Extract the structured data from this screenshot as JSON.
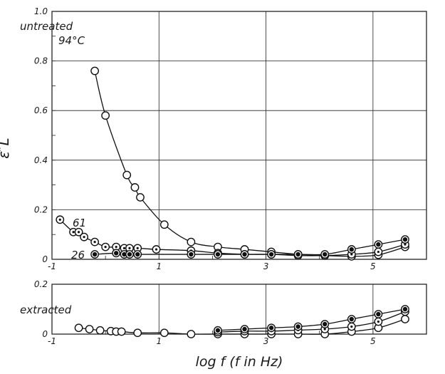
{
  "chart_data": [
    {
      "type": "scatter",
      "panel": "untreated",
      "ylabel": "ε″L",
      "xlim": [
        -1,
        6
      ],
      "ylim": [
        0,
        1.0
      ],
      "grid": true,
      "x_ticks": [
        "-1",
        "1",
        "3",
        "5"
      ],
      "y_ticks": [
        "0",
        "0.2",
        "0.4",
        "0.6",
        "0.8",
        "1.0"
      ],
      "annotations": [
        "untreated",
        "94°C",
        "61",
        "26"
      ],
      "series": [
        {
          "name": "94°C",
          "marker": "open-circle",
          "x": [
            -0.2,
            0.0,
            0.4,
            0.55,
            0.65,
            1.1,
            1.6,
            2.1,
            2.6,
            3.1,
            3.6,
            4.1,
            4.6,
            5.1,
            5.6
          ],
          "y": [
            0.76,
            0.58,
            0.34,
            0.29,
            0.25,
            0.14,
            0.07,
            0.05,
            0.04,
            0.03,
            0.02,
            0.015,
            0.012,
            0.018,
            0.05
          ]
        },
        {
          "name": "61",
          "marker": "dotted-circle",
          "x": [
            -0.85,
            -0.6,
            -0.5,
            -0.4,
            -0.2,
            0.0,
            0.2,
            0.35,
            0.45,
            0.6,
            0.95,
            1.6,
            2.1,
            2.6,
            3.1,
            3.6,
            4.1,
            4.6,
            5.1,
            5.6
          ],
          "y": [
            0.16,
            0.11,
            0.11,
            0.09,
            0.07,
            0.05,
            0.05,
            0.045,
            0.045,
            0.045,
            0.04,
            0.035,
            0.025,
            0.02,
            0.02,
            0.015,
            0.015,
            0.02,
            0.03,
            0.06
          ]
        },
        {
          "name": "26",
          "marker": "filled-dot-circle",
          "x": [
            -0.2,
            0.2,
            0.35,
            0.45,
            0.6,
            1.6,
            2.1,
            2.6,
            3.1,
            3.6,
            4.1,
            4.6,
            5.1,
            5.6
          ],
          "y": [
            0.02,
            0.025,
            0.02,
            0.02,
            0.02,
            0.02,
            0.02,
            0.02,
            0.02,
            0.02,
            0.02,
            0.04,
            0.06,
            0.08
          ]
        }
      ]
    },
    {
      "type": "scatter",
      "panel": "extracted",
      "xlabel": "log f (f in Hz)",
      "xlim": [
        -1,
        6
      ],
      "ylim": [
        0,
        0.2
      ],
      "grid": true,
      "x_ticks": [
        "-1",
        "1",
        "3",
        "5"
      ],
      "y_ticks": [
        "0",
        "0.2"
      ],
      "annotations": [
        "extracted"
      ],
      "series": [
        {
          "marker": "open-circle",
          "x": [
            -0.5,
            -0.3,
            -0.1,
            0.1,
            0.2,
            0.3,
            0.6,
            1.1,
            1.6,
            2.1,
            2.6,
            3.1,
            3.6,
            4.1,
            4.6,
            5.1,
            5.6
          ],
          "y": [
            0.025,
            0.02,
            0.015,
            0.012,
            0.01,
            0.01,
            0.005,
            0.005,
            0.0,
            0.0,
            0.0,
            0.0,
            0.0,
            0.0,
            0.01,
            0.025,
            0.06
          ]
        },
        {
          "marker": "dotted-circle",
          "x": [
            2.1,
            2.6,
            3.1,
            3.6,
            4.1,
            4.6,
            5.1,
            5.6
          ],
          "y": [
            0.008,
            0.012,
            0.012,
            0.016,
            0.02,
            0.03,
            0.05,
            0.09
          ]
        },
        {
          "marker": "filled-dot-circle",
          "x": [
            2.1,
            2.6,
            3.1,
            3.6,
            4.1,
            4.6,
            5.1,
            5.6
          ],
          "y": [
            0.015,
            0.02,
            0.025,
            0.03,
            0.04,
            0.06,
            0.08,
            0.1
          ]
        }
      ]
    }
  ]
}
